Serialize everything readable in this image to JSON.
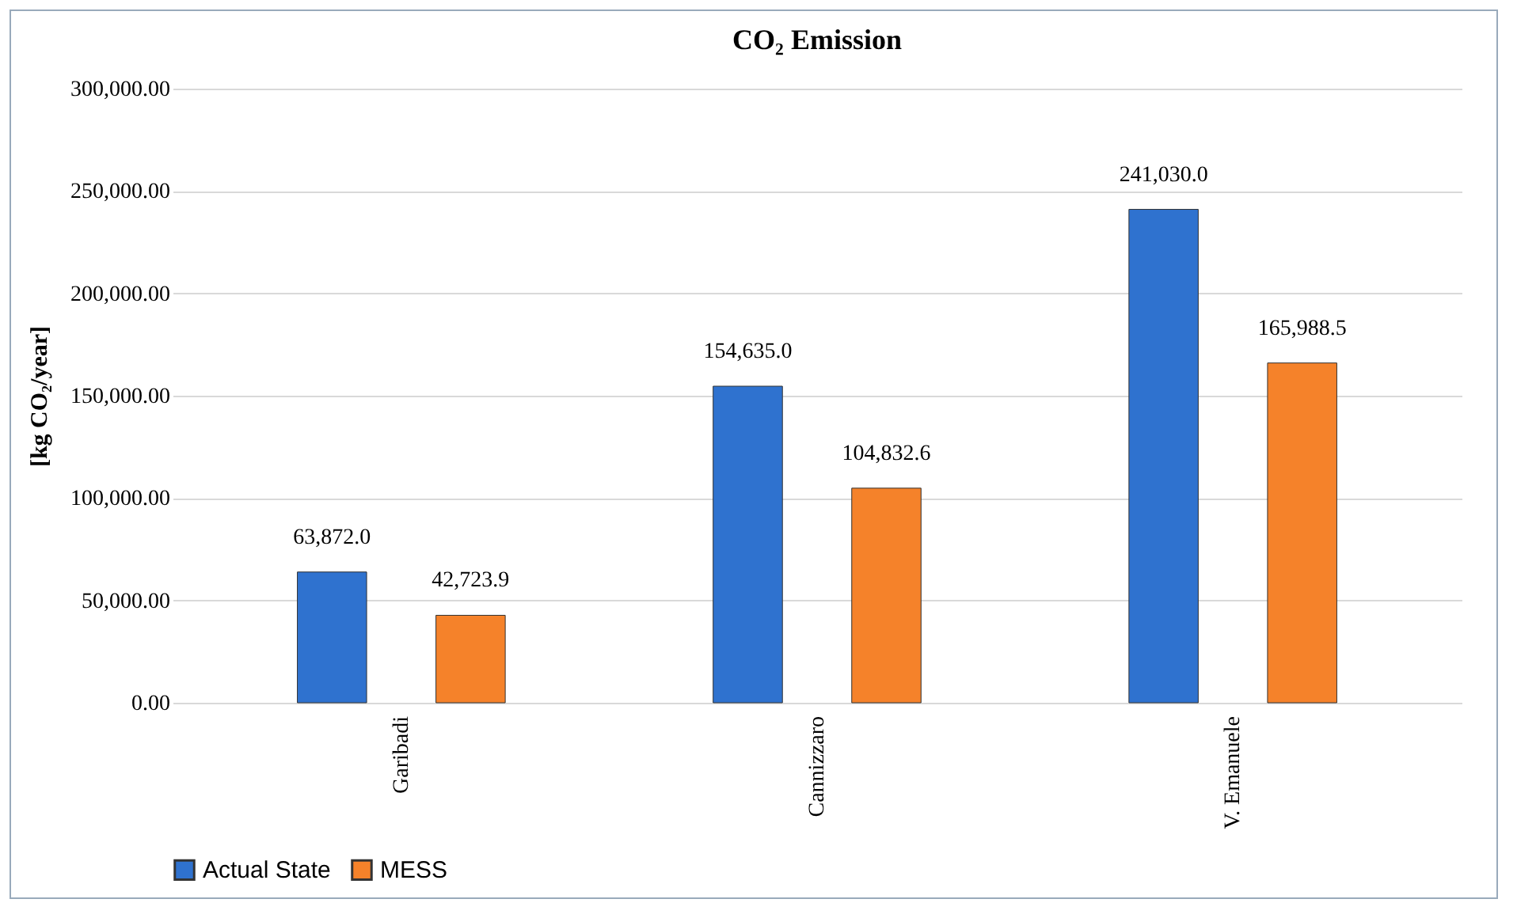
{
  "chart_data": {
    "type": "bar",
    "title": "CO₂ Emission",
    "ylabel": "[kg CO₂/year]",
    "categories": [
      "Garibadi",
      "Cannizzaro",
      "V. Emanuele"
    ],
    "series": [
      {
        "name": "Actual State",
        "color": "#2f72cf",
        "values": [
          63872.0,
          154635.0,
          241030.0
        ],
        "value_labels": [
          "63,872.0",
          "154,635.0",
          "241,030.0"
        ]
      },
      {
        "name": "MESS",
        "color": "#f5822a",
        "values": [
          42723.9,
          104832.6,
          165988.5
        ],
        "value_labels": [
          "42,723.9",
          "104,832.6",
          "165,988.5"
        ]
      }
    ],
    "ylim": [
      0,
      300000
    ],
    "yticks": [
      {
        "value": 0,
        "label": "0.00"
      },
      {
        "value": 50000,
        "label": "50,000.00"
      },
      {
        "value": 100000,
        "label": "100,000.00"
      },
      {
        "value": 150000,
        "label": "150,000.00"
      },
      {
        "value": 200000,
        "label": "200,000.00"
      },
      {
        "value": 250000,
        "label": "250,000.00"
      },
      {
        "value": 300000,
        "label": "300,000.00"
      }
    ],
    "grid": "y",
    "legend": "bottom"
  }
}
